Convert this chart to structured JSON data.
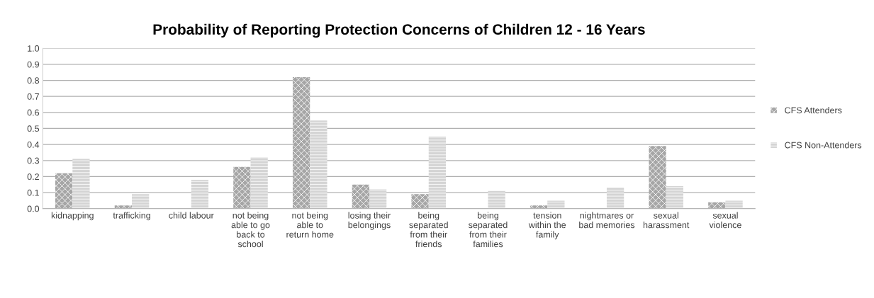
{
  "chart_data": {
    "type": "bar",
    "title": "Probability of Reporting Protection Concerns of Children 12 - 16 Years",
    "categories": [
      "kidnapping",
      "trafficking",
      "child labour",
      "not being able to go back to school",
      "not being able to return home",
      "losing their belongings",
      "being separated from their friends",
      "being separated from their families",
      "tension within the family",
      "nightmares or bad memories",
      "sexual harassment",
      "sexual violence"
    ],
    "series": [
      {
        "name": "CFS Attenders",
        "color": "#a6a6a6",
        "values": [
          0.22,
          0.02,
          0,
          0.26,
          0.82,
          0.15,
          0.09,
          0,
          0.02,
          0,
          0.39,
          0.04
        ]
      },
      {
        "name": "CFS Non-Attenders",
        "color": "#d4d4d4",
        "values": [
          0.31,
          0.09,
          0.18,
          0.32,
          0.55,
          0.12,
          0.45,
          0.11,
          0.05,
          0.13,
          0.14,
          0.05
        ]
      }
    ],
    "ylim": [
      0,
      1.0
    ],
    "yticks": [
      {
        "value": 0,
        "label": "0.0"
      },
      {
        "value": 0.1,
        "label": "0.1"
      },
      {
        "value": 0.2,
        "label": "0.2"
      },
      {
        "value": 0.3,
        "label": "0.3"
      },
      {
        "value": 0.4,
        "label": "0.4"
      },
      {
        "value": 0.5,
        "label": "0.5"
      },
      {
        "value": 0.6,
        "label": "0.6"
      },
      {
        "value": 0.7,
        "label": "0.7"
      },
      {
        "value": 0.8,
        "label": "0.8"
      },
      {
        "value": 0.9,
        "label": "0.9"
      },
      {
        "value": 1.0,
        "label": "1.0"
      }
    ],
    "grid": "y",
    "legend": "right"
  }
}
